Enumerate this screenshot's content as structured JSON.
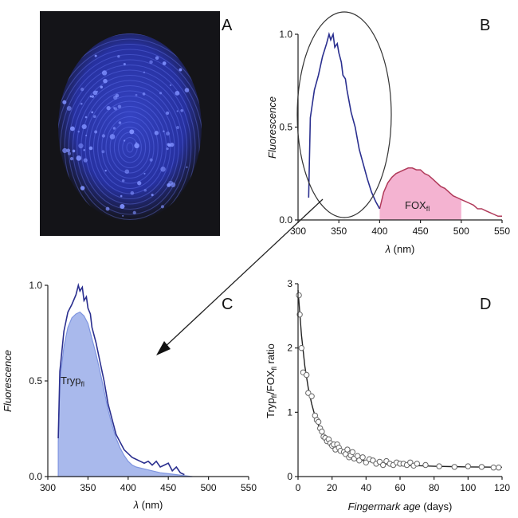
{
  "panels": {
    "A": {
      "letter": "A"
    },
    "B": {
      "letter": "B"
    },
    "C": {
      "letter": "C"
    },
    "D": {
      "letter": "D"
    }
  },
  "colors": {
    "image_bg": "#141418",
    "fingerprint": "#2e3ecf",
    "tryp_line": "#2a2f8f",
    "tryp_fill": "#a9b9ec",
    "tryp_fill_edge": "#7f95e0",
    "fox_line": "#b03a5a",
    "fox_fill": "#f2a6c9",
    "decay_line": "#222222",
    "decay_marker_edge": "#666666"
  },
  "chart_data": [
    {
      "panel": "B",
      "type": "line",
      "ylabel": "Fluorescence",
      "xlabel_symbol": "λ",
      "xlabel_unit": "(nm)",
      "xlim": [
        300,
        550
      ],
      "ylim": [
        0,
        1.0
      ],
      "xticks": [
        "300",
        "350",
        "400",
        "450",
        "500",
        "550"
      ],
      "yticks": [
        "0.0",
        "0.5",
        "1.0"
      ],
      "series": [
        {
          "x": [
            313,
            315,
            320,
            325,
            330,
            335,
            338,
            340,
            343,
            345,
            348,
            350,
            353,
            355,
            358,
            360,
            365,
            370,
            375,
            380,
            385,
            390,
            395,
            400
          ],
          "y": [
            0.12,
            0.55,
            0.7,
            0.78,
            0.88,
            0.95,
            1.0,
            0.97,
            1.0,
            0.93,
            0.95,
            0.9,
            0.85,
            0.78,
            0.76,
            0.7,
            0.58,
            0.5,
            0.38,
            0.3,
            0.22,
            0.15,
            0.1,
            0.06
          ]
        },
        {
          "name_main": "FOX",
          "name_sub": "fl",
          "x": [
            400,
            405,
            410,
            415,
            420,
            425,
            430,
            435,
            440,
            445,
            450,
            455,
            460,
            465,
            470,
            475,
            480,
            485,
            490,
            495,
            500,
            505,
            510,
            515,
            520,
            525,
            530,
            535,
            540,
            545,
            550
          ],
          "y": [
            0.06,
            0.15,
            0.2,
            0.23,
            0.25,
            0.26,
            0.27,
            0.28,
            0.28,
            0.27,
            0.27,
            0.25,
            0.24,
            0.22,
            0.2,
            0.18,
            0.17,
            0.15,
            0.13,
            0.12,
            0.11,
            0.1,
            0.09,
            0.08,
            0.06,
            0.06,
            0.05,
            0.04,
            0.03,
            0.02,
            0.02
          ]
        }
      ]
    },
    {
      "panel": "C",
      "type": "area",
      "ylabel": "Fluorescence",
      "xlabel_symbol": "λ",
      "xlabel_unit": "(nm)",
      "xlim": [
        300,
        550
      ],
      "ylim": [
        0,
        1.0
      ],
      "xticks": [
        "300",
        "350",
        "400",
        "450",
        "500",
        "550"
      ],
      "yticks": [
        "0.0",
        "0.5",
        "1.0"
      ],
      "series": [
        {
          "x": [
            313,
            315,
            320,
            325,
            330,
            335,
            338,
            340,
            343,
            345,
            348,
            350,
            353,
            355,
            360,
            365,
            370,
            375,
            380,
            385,
            390,
            395,
            400,
            405,
            410,
            415,
            420,
            425,
            430,
            435,
            440,
            445,
            450,
            455,
            460,
            465,
            470
          ],
          "y": [
            0.2,
            0.55,
            0.76,
            0.86,
            0.9,
            0.95,
            1.0,
            0.97,
            0.99,
            0.92,
            0.94,
            0.88,
            0.85,
            0.78,
            0.7,
            0.6,
            0.5,
            0.38,
            0.3,
            0.22,
            0.18,
            0.14,
            0.12,
            0.1,
            0.09,
            0.08,
            0.07,
            0.08,
            0.06,
            0.08,
            0.05,
            0.06,
            0.07,
            0.03,
            0.05,
            0.02,
            0.01
          ]
        },
        {
          "name_main": "Tryp",
          "name_sub": "fl",
          "x": [
            313,
            315,
            320,
            325,
            330,
            335,
            340,
            345,
            350,
            355,
            360,
            365,
            370,
            375,
            380,
            385,
            390,
            395,
            400,
            405,
            410,
            420,
            430,
            440,
            450,
            460,
            470,
            480
          ],
          "y": [
            0.18,
            0.5,
            0.68,
            0.78,
            0.83,
            0.85,
            0.86,
            0.84,
            0.8,
            0.72,
            0.64,
            0.55,
            0.45,
            0.35,
            0.27,
            0.2,
            0.15,
            0.11,
            0.08,
            0.06,
            0.05,
            0.04,
            0.03,
            0.02,
            0.015,
            0.01,
            0.005,
            0.0
          ]
        }
      ]
    },
    {
      "panel": "D",
      "type": "scatter",
      "ylabel_parts": [
        "Tryp",
        "fl",
        "/FOX",
        "fl",
        " ratio"
      ],
      "xlabel_main": "Fingermark age",
      "xlabel_unit": "(days)",
      "xlim": [
        0,
        120
      ],
      "ylim": [
        0,
        3
      ],
      "xticks": [
        "0",
        "20",
        "40",
        "60",
        "80",
        "100",
        "120"
      ],
      "yticks": [
        "0",
        "1",
        "2",
        "3"
      ],
      "points": {
        "x": [
          0.5,
          1,
          2,
          3,
          5,
          6,
          8,
          10,
          11,
          12,
          13,
          14,
          15,
          16,
          17,
          18,
          19,
          20,
          21,
          22,
          23,
          24,
          25,
          27,
          28,
          29,
          30,
          31,
          32,
          33,
          35,
          36,
          38,
          40,
          42,
          44,
          46,
          48,
          50,
          52,
          54,
          56,
          58,
          60,
          62,
          64,
          66,
          68,
          70,
          75,
          83,
          92,
          100,
          108,
          115,
          118
        ],
        "y": [
          2.82,
          2.52,
          2.0,
          1.62,
          1.58,
          1.3,
          1.25,
          0.95,
          0.88,
          0.85,
          0.75,
          0.7,
          0.62,
          0.6,
          0.55,
          0.58,
          0.52,
          0.48,
          0.5,
          0.42,
          0.5,
          0.45,
          0.4,
          0.38,
          0.35,
          0.42,
          0.3,
          0.33,
          0.38,
          0.28,
          0.32,
          0.25,
          0.3,
          0.22,
          0.27,
          0.25,
          0.2,
          0.23,
          0.18,
          0.24,
          0.2,
          0.18,
          0.22,
          0.2,
          0.2,
          0.18,
          0.22,
          0.17,
          0.2,
          0.18,
          0.16,
          0.15,
          0.16,
          0.15,
          0.14,
          0.14
        ]
      },
      "fit": {
        "x": [
          0,
          2,
          4,
          6,
          8,
          10,
          12,
          15,
          18,
          21,
          25,
          30,
          35,
          40,
          50,
          60,
          70,
          80,
          90,
          100,
          110,
          120
        ],
        "y": [
          2.9,
          2.2,
          1.72,
          1.38,
          1.13,
          0.94,
          0.8,
          0.65,
          0.54,
          0.46,
          0.38,
          0.31,
          0.27,
          0.24,
          0.2,
          0.18,
          0.17,
          0.16,
          0.155,
          0.15,
          0.148,
          0.145
        ]
      }
    }
  ]
}
